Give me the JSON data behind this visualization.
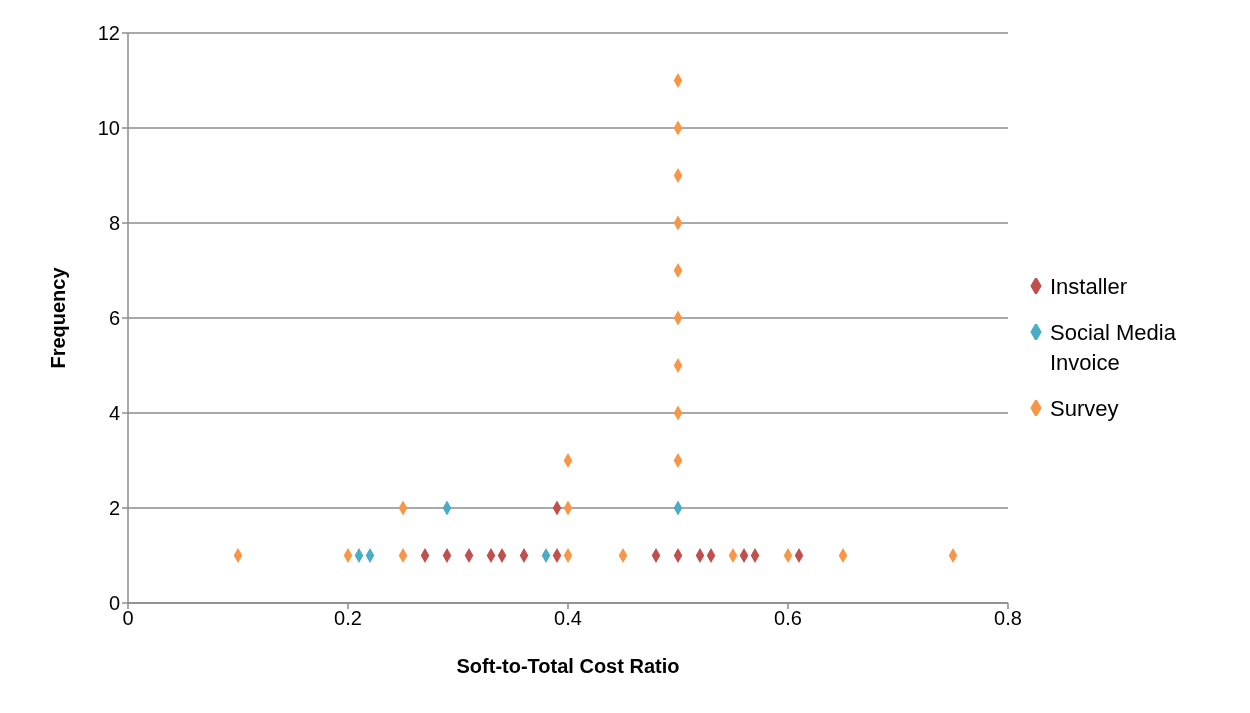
{
  "chart_data": {
    "type": "scatter",
    "xlabel": "Soft-to-Total Cost Ratio",
    "ylabel": "Frequency",
    "xlim": [
      0,
      0.8
    ],
    "xticks": [
      0,
      0.2,
      0.4,
      0.6,
      0.8
    ],
    "ylim": [
      0,
      12
    ],
    "yticks": [
      0,
      2,
      4,
      6,
      8,
      10,
      12
    ],
    "grid": "y",
    "legend": "right",
    "marker": "diamond",
    "series": [
      {
        "name": "Installer",
        "color": "#c0504d",
        "x": [
          0.27,
          0.29,
          0.31,
          0.33,
          0.34,
          0.36,
          0.39,
          0.39,
          0.48,
          0.5,
          0.52,
          0.53,
          0.56,
          0.57,
          0.61
        ],
        "values": [
          1,
          1,
          1,
          1,
          1,
          1,
          1,
          2,
          1,
          1,
          1,
          1,
          1,
          1,
          1
        ]
      },
      {
        "name": "Social Media Invoice",
        "color": "#4bacc6",
        "x": [
          0.21,
          0.22,
          0.29,
          0.38,
          0.5
        ],
        "values": [
          1,
          1,
          2,
          1,
          2
        ]
      },
      {
        "name": "Survey",
        "color": "#f79646",
        "x": [
          0.1,
          0.2,
          0.25,
          0.25,
          0.4,
          0.4,
          0.4,
          0.45,
          0.5,
          0.5,
          0.5,
          0.5,
          0.5,
          0.5,
          0.5,
          0.5,
          0.5,
          0.55,
          0.6,
          0.65,
          0.75
        ],
        "values": [
          1,
          1,
          1,
          2,
          1,
          2,
          3,
          1,
          3,
          4,
          5,
          6,
          7,
          8,
          9,
          10,
          11,
          1,
          1,
          1,
          1
        ]
      }
    ]
  }
}
